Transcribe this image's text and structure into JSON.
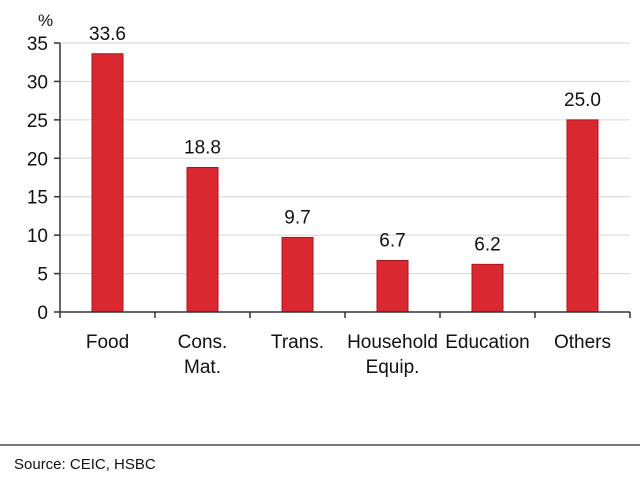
{
  "chart_data": {
    "type": "bar",
    "title": "",
    "xlabel": "",
    "ylabel": "%",
    "ylim": [
      0,
      35
    ],
    "yticks": [
      0,
      5,
      10,
      15,
      20,
      25,
      30,
      35
    ],
    "grid": true,
    "categories": [
      [
        "Food"
      ],
      [
        "Cons.",
        "Mat."
      ],
      [
        "Trans."
      ],
      [
        "Household",
        "Equip."
      ],
      [
        "Education"
      ],
      [
        "Others"
      ]
    ],
    "values": [
      33.6,
      18.8,
      9.7,
      6.7,
      6.2,
      25.0
    ],
    "data_labels": [
      "33.6",
      "18.8",
      "9.7",
      "6.7",
      "6.2",
      "25.0"
    ],
    "bar_color": "#d9282f",
    "bar_edge_color": "#a8161c"
  },
  "source": "Source: CEIC, HSBC"
}
